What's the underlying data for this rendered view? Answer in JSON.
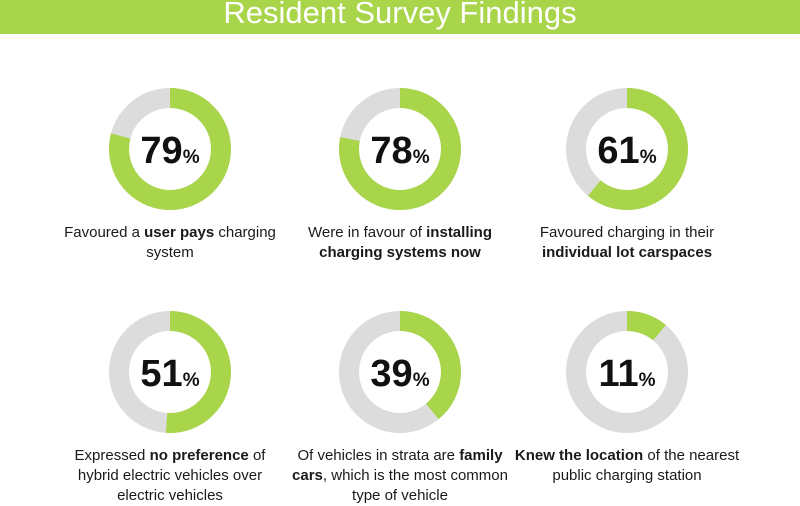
{
  "header": {
    "title": "Resident Survey Findings"
  },
  "colors": {
    "accent": "#a8d54a",
    "track": "#dcdcdc"
  },
  "chart_data": {
    "type": "donut",
    "items": [
      {
        "value": 79,
        "unit": "%",
        "caption": [
          {
            "t": "Favoured a "
          },
          {
            "t": "user pays",
            "b": true
          },
          {
            "t": " charging system"
          }
        ]
      },
      {
        "value": 78,
        "unit": "%",
        "caption": [
          {
            "t": "Were in favour of "
          },
          {
            "t": "installing charging systems now",
            "b": true
          }
        ]
      },
      {
        "value": 61,
        "unit": "%",
        "caption": [
          {
            "t": "Favoured charging in their "
          },
          {
            "t": "individual lot carspaces",
            "b": true
          }
        ]
      },
      {
        "value": 51,
        "unit": "%",
        "caption": [
          {
            "t": "Expressed "
          },
          {
            "t": "no preference",
            "b": true
          },
          {
            "t": " of hybrid electric vehicles over electric vehicles"
          }
        ]
      },
      {
        "value": 39,
        "unit": "%",
        "caption": [
          {
            "t": "Of vehicles in strata are "
          },
          {
            "t": "family cars",
            "b": true
          },
          {
            "t": ", which is the most common type of vehicle"
          }
        ]
      },
      {
        "value": 11,
        "unit": "%",
        "caption": [
          {
            "t": "Knew the location",
            "b": true
          },
          {
            "t": " of the nearest public charging station"
          }
        ]
      }
    ]
  }
}
